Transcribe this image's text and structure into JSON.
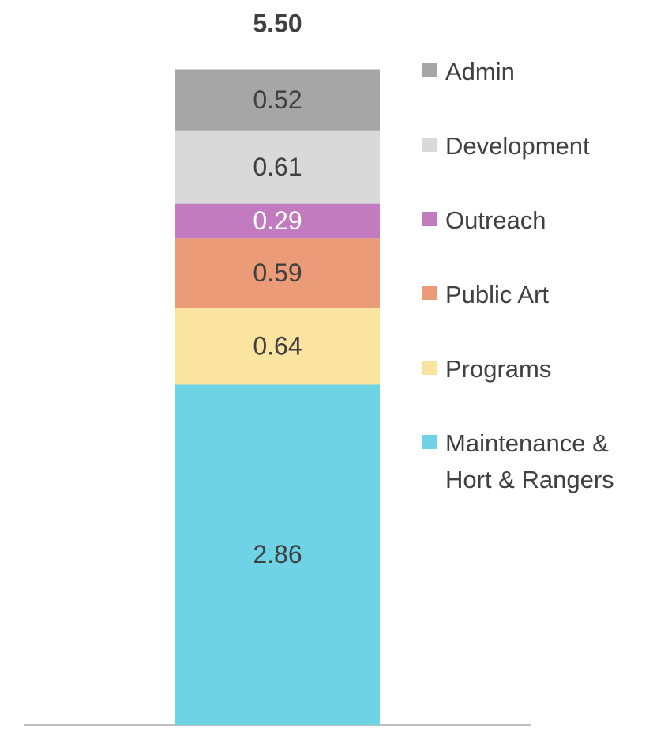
{
  "chart_data": {
    "type": "stacked-bar",
    "categories": [
      null
    ],
    "total": {
      "value": 5.5,
      "label": "5.50"
    },
    "series": [
      {
        "name": "Admin",
        "color": "#a6a6a6",
        "label_color": "#404040",
        "values": [
          0.52
        ]
      },
      {
        "name": "Development",
        "color": "#d9d9d9",
        "label_color": "#404040",
        "values": [
          0.61
        ]
      },
      {
        "name": "Outreach",
        "color": "#c27bbf",
        "label_color": "#ffffff",
        "values": [
          0.29
        ]
      },
      {
        "name": "Public Art",
        "color": "#eb9b78",
        "label_color": "#404040",
        "values": [
          0.59
        ]
      },
      {
        "name": "Programs",
        "color": "#fbe3a0",
        "label_color": "#404040",
        "values": [
          0.64
        ]
      },
      {
        "name": "Maintenance & Hort & Rangers",
        "color": "#6dd3e5",
        "label_color": "#404040",
        "values": [
          2.86
        ]
      }
    ]
  }
}
